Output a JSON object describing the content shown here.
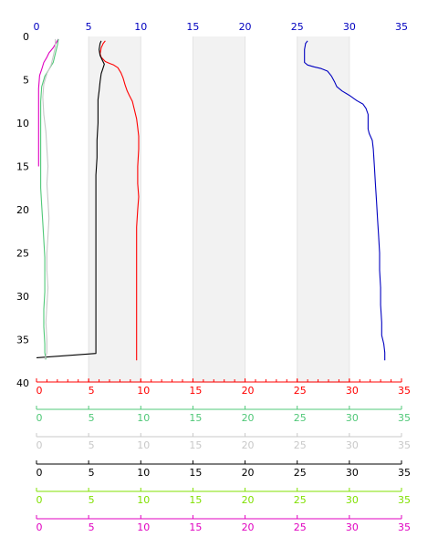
{
  "chart_data": {
    "type": "line",
    "title": "",
    "y_axis": {
      "ylim": [
        40,
        0
      ],
      "ticks": [
        0,
        5,
        10,
        15,
        20,
        25,
        30,
        35,
        40
      ],
      "color": "#000000",
      "label": ""
    },
    "top_axis": {
      "xlim": [
        0,
        35
      ],
      "ticks": [
        0,
        5,
        10,
        15,
        20,
        25,
        30,
        35
      ],
      "color": "#0000c0"
    },
    "shaded_bands": [
      [
        5,
        10
      ],
      [
        15,
        20
      ],
      [
        25,
        30
      ]
    ],
    "bottom_axes": [
      {
        "color": "#ff0000",
        "xlim": [
          0,
          35
        ],
        "ticks": [
          0,
          5,
          10,
          15,
          20,
          25,
          30,
          35
        ],
        "minor_step": 1
      },
      {
        "color": "#50c878",
        "xlim": [
          0,
          35
        ],
        "ticks": [
          0,
          5,
          10,
          15,
          20,
          25,
          30,
          35
        ],
        "minor_step": 0
      },
      {
        "color": "#c8c8c8",
        "xlim": [
          0,
          35
        ],
        "ticks": [
          0,
          5,
          10,
          15,
          20,
          25,
          30,
          35
        ],
        "minor_step": 0
      },
      {
        "color": "#000000",
        "xlim": [
          0,
          35
        ],
        "ticks": [
          0,
          5,
          10,
          15,
          20,
          25,
          30,
          35
        ],
        "minor_step": 0
      },
      {
        "color": "#80e000",
        "xlim": [
          0,
          35
        ],
        "ticks": [
          0,
          5,
          10,
          15,
          20,
          25,
          30,
          35
        ],
        "minor_step": 0
      },
      {
        "color": "#e000c0",
        "xlim": [
          0,
          35
        ],
        "ticks": [
          0,
          5,
          10,
          15,
          20,
          25,
          30,
          35
        ],
        "minor_step": 0
      }
    ],
    "series": [
      {
        "color": "#0000c0",
        "axis": "top",
        "points": [
          [
            26.0,
            0.5
          ],
          [
            25.8,
            0.8
          ],
          [
            25.7,
            1.5
          ],
          [
            25.7,
            2.5
          ],
          [
            25.7,
            3.0
          ],
          [
            26.0,
            3.3
          ],
          [
            26.6,
            3.5
          ],
          [
            27.3,
            3.7
          ],
          [
            27.9,
            4.0
          ],
          [
            28.3,
            4.6
          ],
          [
            28.6,
            5.3
          ],
          [
            28.8,
            5.8
          ],
          [
            29.3,
            6.3
          ],
          [
            30.0,
            6.8
          ],
          [
            30.7,
            7.4
          ],
          [
            31.3,
            7.8
          ],
          [
            31.6,
            8.3
          ],
          [
            31.8,
            9.0
          ],
          [
            31.8,
            10.0
          ],
          [
            31.8,
            10.7
          ],
          [
            31.9,
            11.2
          ],
          [
            32.2,
            12.0
          ],
          [
            32.3,
            13.0
          ],
          [
            32.4,
            15.0
          ],
          [
            32.5,
            17.0
          ],
          [
            32.6,
            19.0
          ],
          [
            32.7,
            21.0
          ],
          [
            32.8,
            23.0
          ],
          [
            32.9,
            25.0
          ],
          [
            32.9,
            27.0
          ],
          [
            33.0,
            29.0
          ],
          [
            33.0,
            31.0
          ],
          [
            33.1,
            33.0
          ],
          [
            33.1,
            34.5
          ],
          [
            33.3,
            35.5
          ],
          [
            33.4,
            36.5
          ],
          [
            33.4,
            37.4
          ]
        ]
      },
      {
        "color": "#ff0000",
        "axis": "bottom-0",
        "points": [
          [
            6.6,
            0.5
          ],
          [
            6.4,
            0.8
          ],
          [
            6.2,
            1.3
          ],
          [
            6.1,
            2.0
          ],
          [
            6.2,
            2.4
          ],
          [
            6.6,
            2.9
          ],
          [
            7.0,
            3.1
          ],
          [
            7.4,
            3.3
          ],
          [
            7.8,
            3.6
          ],
          [
            8.1,
            4.2
          ],
          [
            8.3,
            4.8
          ],
          [
            8.5,
            5.6
          ],
          [
            8.7,
            6.3
          ],
          [
            8.9,
            6.8
          ],
          [
            9.2,
            7.5
          ],
          [
            9.4,
            8.5
          ],
          [
            9.6,
            9.5
          ],
          [
            9.7,
            10.5
          ],
          [
            9.8,
            11.5
          ],
          [
            9.8,
            13.0
          ],
          [
            9.7,
            15.0
          ],
          [
            9.7,
            17.0
          ],
          [
            9.8,
            18.5
          ],
          [
            9.7,
            20.0
          ],
          [
            9.6,
            22.0
          ],
          [
            9.6,
            24.0
          ],
          [
            9.6,
            26.0
          ],
          [
            9.6,
            28.0
          ],
          [
            9.6,
            30.0
          ],
          [
            9.6,
            32.0
          ],
          [
            9.6,
            34.0
          ],
          [
            9.6,
            36.0
          ],
          [
            9.6,
            37.4
          ]
        ]
      },
      {
        "color": "#000000",
        "axis": "bottom-3",
        "points": [
          [
            6.2,
            0.5
          ],
          [
            6.1,
            0.8
          ],
          [
            6.0,
            1.5
          ],
          [
            6.1,
            2.2
          ],
          [
            6.3,
            2.7
          ],
          [
            6.5,
            3.2
          ],
          [
            6.4,
            3.6
          ],
          [
            6.2,
            4.3
          ],
          [
            6.1,
            5.2
          ],
          [
            6.0,
            6.3
          ],
          [
            5.9,
            7.3
          ],
          [
            5.9,
            8.5
          ],
          [
            5.9,
            10.0
          ],
          [
            5.8,
            12.0
          ],
          [
            5.8,
            14.0
          ],
          [
            5.7,
            16.0
          ],
          [
            5.7,
            18.0
          ],
          [
            5.7,
            20.0
          ],
          [
            5.7,
            22.0
          ],
          [
            5.7,
            24.0
          ],
          [
            5.7,
            26.0
          ],
          [
            5.7,
            28.0
          ],
          [
            5.7,
            30.0
          ],
          [
            5.7,
            32.0
          ],
          [
            5.7,
            34.0
          ],
          [
            5.7,
            36.0
          ],
          [
            5.7,
            36.6
          ],
          [
            0.0,
            37.1
          ]
        ]
      },
      {
        "color": "#e000c0",
        "axis": "bottom-5",
        "points": [
          [
            2.1,
            0.3
          ],
          [
            1.9,
            0.7
          ],
          [
            1.6,
            1.3
          ],
          [
            1.2,
            1.9
          ],
          [
            1.0,
            2.4
          ],
          [
            0.7,
            3.0
          ],
          [
            0.5,
            3.8
          ],
          [
            0.3,
            4.5
          ],
          [
            0.2,
            6.0
          ],
          [
            0.2,
            8.0
          ],
          [
            0.2,
            10.0
          ],
          [
            0.2,
            12.0
          ],
          [
            0.2,
            13.5
          ],
          [
            0.2,
            15.0
          ]
        ]
      },
      {
        "color": "#50c878",
        "axis": "bottom-1",
        "points": [
          [
            2.1,
            0.3
          ],
          [
            2.0,
            1.0
          ],
          [
            1.8,
            2.0
          ],
          [
            1.6,
            3.0
          ],
          [
            1.2,
            3.8
          ],
          [
            0.8,
            4.6
          ],
          [
            0.5,
            5.8
          ],
          [
            0.4,
            7.5
          ],
          [
            0.4,
            9.5
          ],
          [
            0.4,
            11.5
          ],
          [
            0.4,
            13.5
          ],
          [
            0.4,
            15.5
          ],
          [
            0.4,
            17.5
          ],
          [
            0.5,
            19.5
          ],
          [
            0.6,
            21.5
          ],
          [
            0.7,
            23.5
          ],
          [
            0.8,
            25.5
          ],
          [
            0.8,
            27.5
          ],
          [
            0.8,
            29.5
          ],
          [
            0.7,
            31.5
          ],
          [
            0.7,
            33.5
          ],
          [
            0.8,
            35.5
          ],
          [
            0.8,
            36.5
          ],
          [
            0.9,
            37.3
          ]
        ]
      },
      {
        "color": "#c8c8c8",
        "axis": "bottom-2",
        "points": [
          [
            1.8,
            0.3
          ],
          [
            1.8,
            1.2
          ],
          [
            1.6,
            2.3
          ],
          [
            1.4,
            3.3
          ],
          [
            1.0,
            4.3
          ],
          [
            0.7,
            5.5
          ],
          [
            0.6,
            7.0
          ],
          [
            0.7,
            9.0
          ],
          [
            0.9,
            11.0
          ],
          [
            1.0,
            13.0
          ],
          [
            1.1,
            15.0
          ],
          [
            1.0,
            17.0
          ],
          [
            1.1,
            19.0
          ],
          [
            1.2,
            21.0
          ],
          [
            1.1,
            23.0
          ],
          [
            1.0,
            25.0
          ],
          [
            1.0,
            27.0
          ],
          [
            1.1,
            29.0
          ],
          [
            1.0,
            31.0
          ],
          [
            0.9,
            33.0
          ],
          [
            1.0,
            35.0
          ],
          [
            1.0,
            36.5
          ],
          [
            0.8,
            37.3
          ]
        ]
      }
    ]
  }
}
